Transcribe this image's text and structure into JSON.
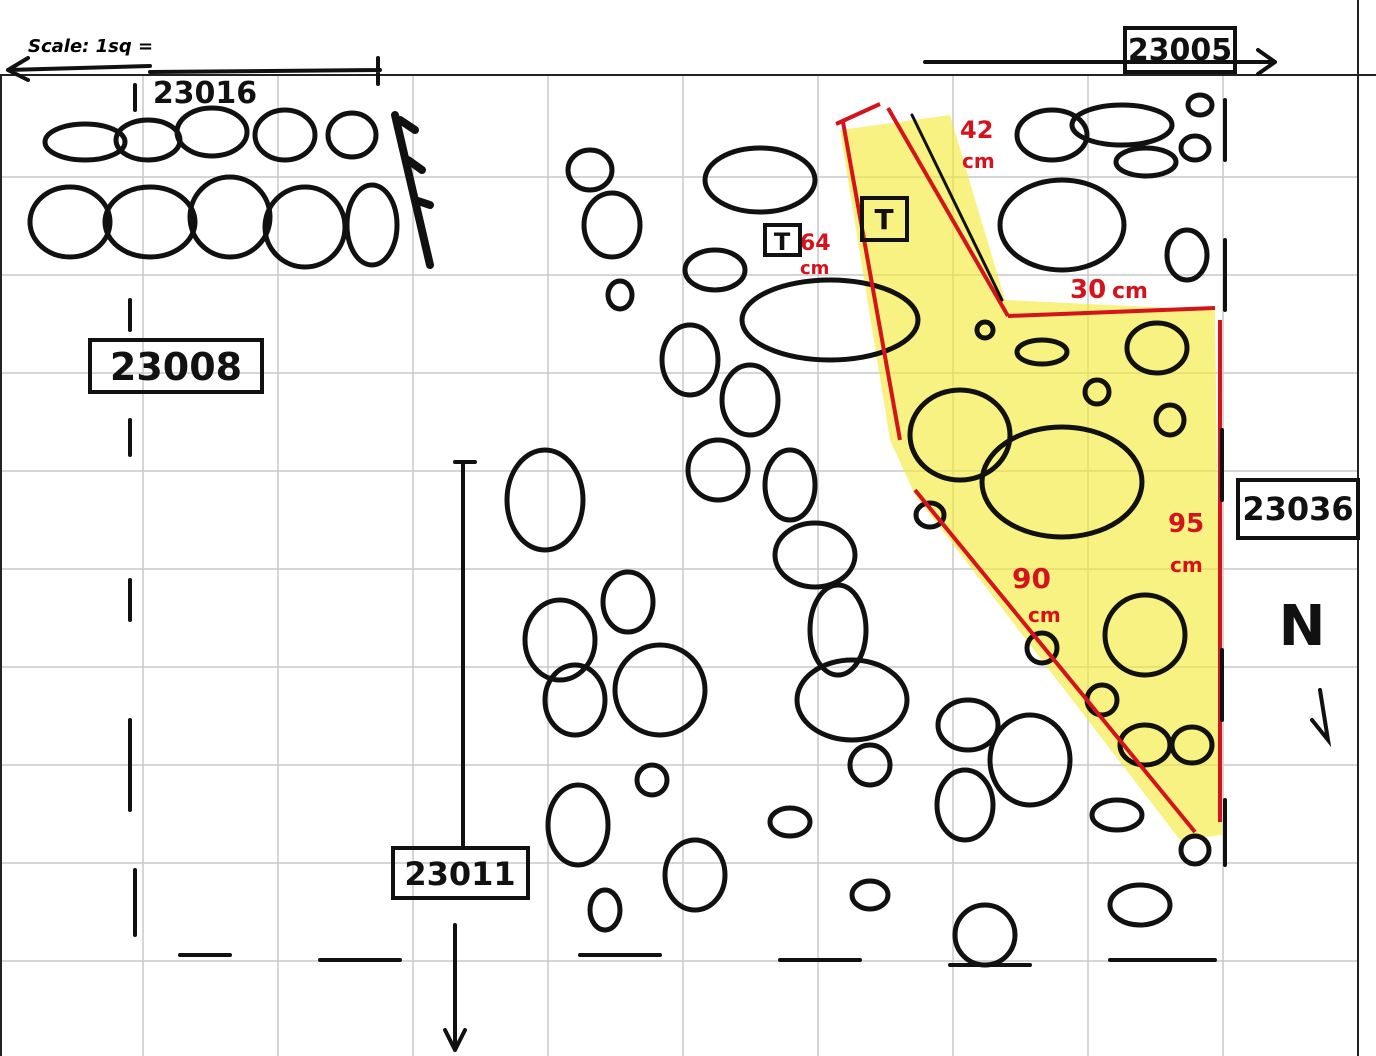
{
  "header": {
    "scale": "Scale: 1sq ="
  },
  "contexts": {
    "top_right": "23005",
    "top_left": "23016",
    "left": "23008",
    "right": "23036",
    "bottom": "23011"
  },
  "measurements": [
    {
      "value": "42",
      "unit": "cm"
    },
    {
      "value": "30",
      "unit": "cm"
    },
    {
      "value": "64",
      "unit": "cm"
    },
    {
      "value": "95",
      "unit": "cm"
    },
    {
      "value": "90",
      "unit": "cm"
    }
  ],
  "tags": [
    "T",
    "T"
  ],
  "north": "N"
}
